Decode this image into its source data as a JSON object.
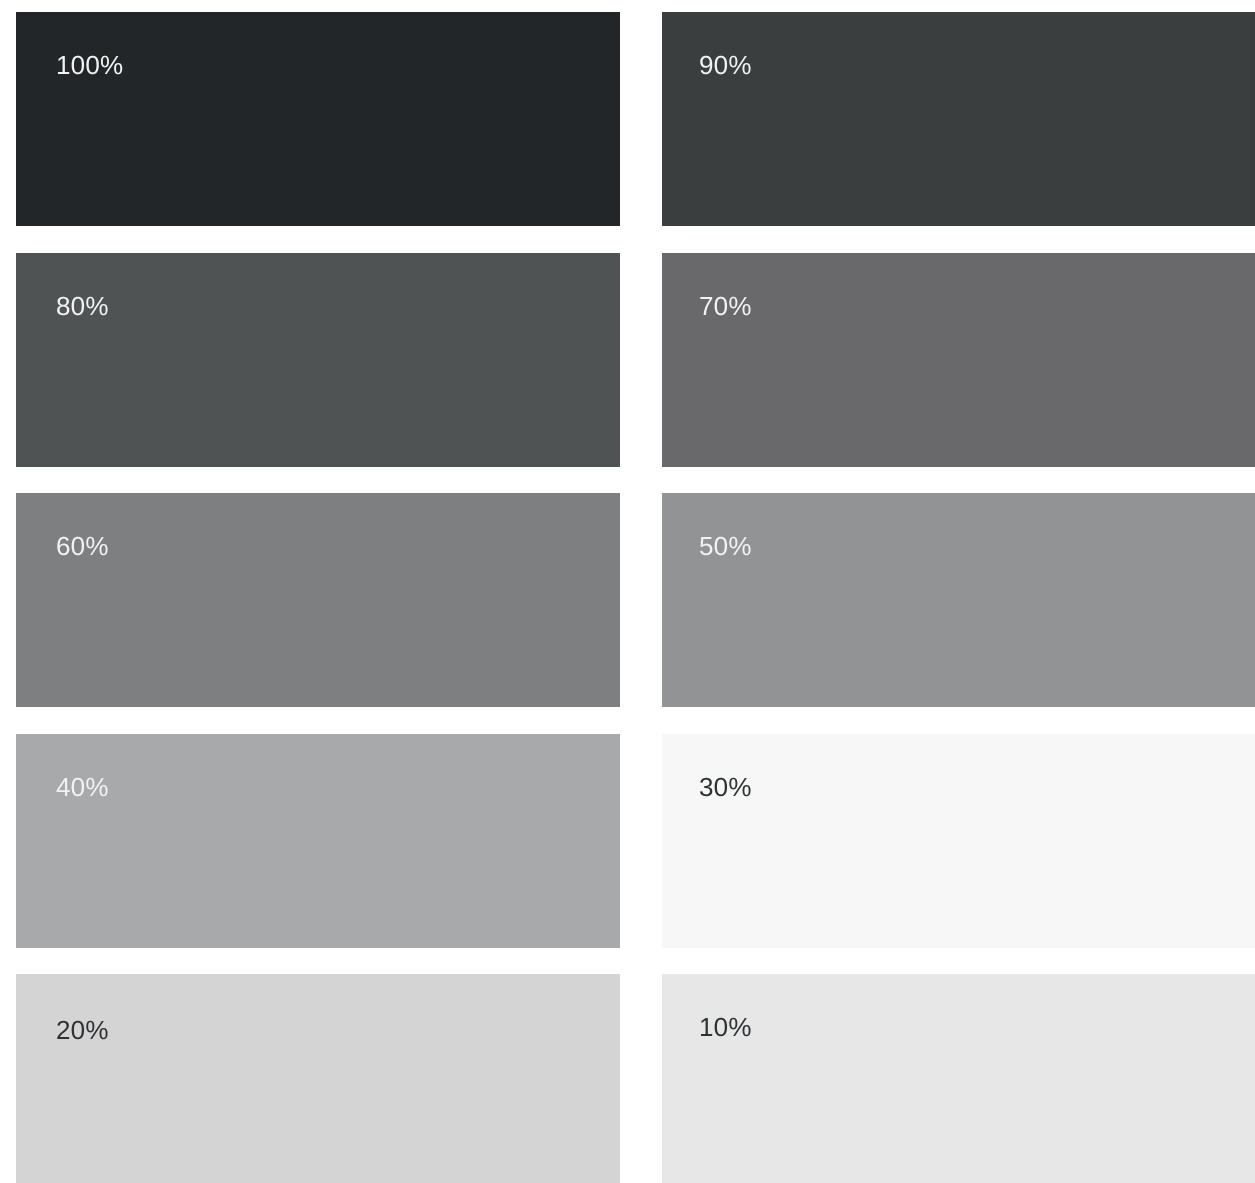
{
  "swatches": [
    {
      "label": "100%",
      "color": "#232629",
      "text_color": "#f2f2f2"
    },
    {
      "label": "90%",
      "color": "#3b3e3f",
      "text_color": "#f2f2f2"
    },
    {
      "label": "80%",
      "color": "#505354",
      "text_color": "#f2f2f2"
    },
    {
      "label": "70%",
      "color": "#69696b",
      "text_color": "#f2f2f2"
    },
    {
      "label": "60%",
      "color": "#7e7f80",
      "text_color": "#f2f2f2"
    },
    {
      "label": "50%",
      "color": "#929394",
      "text_color": "#f2f2f2"
    },
    {
      "label": "40%",
      "color": "#a8a9aa",
      "text_color": "#f2f2f2"
    },
    {
      "label": "30%",
      "color": "#f6f7f6",
      "text_color": "#2f3234"
    },
    {
      "label": "20%",
      "color": "#d4d4d4",
      "text_color": "#2f3234"
    },
    {
      "label": "10%",
      "color": "#e7e7e7",
      "text_color": "#2f3234"
    }
  ]
}
